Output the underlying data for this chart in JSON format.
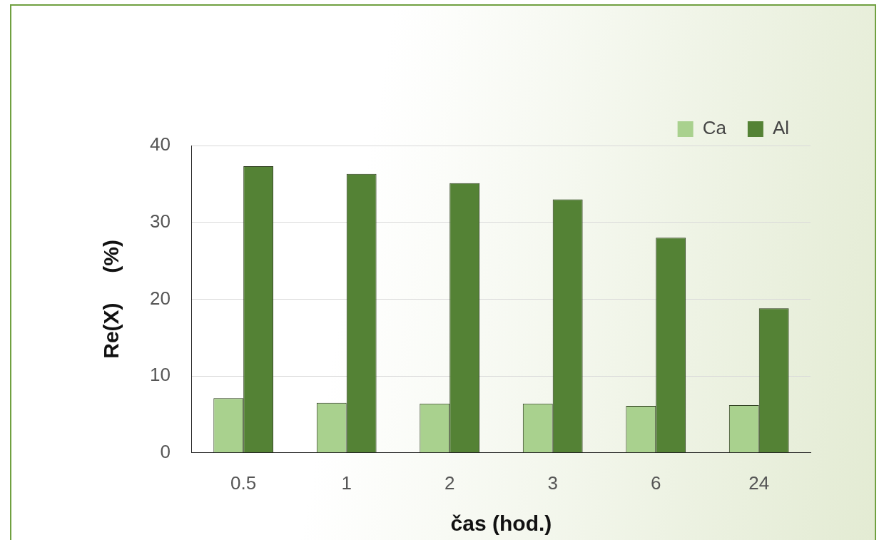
{
  "chart_data": {
    "type": "bar",
    "xlabel": "čas (hod.)",
    "ylabel": "Re(X)     (%)",
    "categories": [
      "0.5",
      "1",
      "2",
      "3",
      "6",
      "24"
    ],
    "series": [
      {
        "name": "Ca",
        "color": "#a9d18e",
        "values": [
          7.1,
          6.5,
          6.4,
          6.4,
          6.1,
          6.2
        ]
      },
      {
        "name": "Al",
        "color": "#548235",
        "values": [
          37.3,
          36.3,
          35.1,
          33.0,
          28.0,
          18.8
        ]
      }
    ],
    "ylim": [
      0,
      40
    ],
    "yticks": [
      0,
      10,
      20,
      30,
      40
    ],
    "grid": "y",
    "legend": "top right"
  }
}
